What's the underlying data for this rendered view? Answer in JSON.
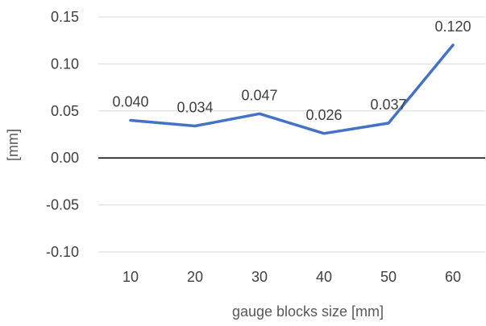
{
  "chart_data": {
    "type": "line",
    "title": "",
    "xlabel": "gauge blocks size  [mm]",
    "ylabel": "[mm]",
    "categories": [
      "10",
      "20",
      "30",
      "40",
      "50",
      "60"
    ],
    "series": [
      {
        "values": [
          0.04,
          0.034,
          0.047,
          0.026,
          0.037,
          0.12
        ],
        "data_labels": [
          "0.040",
          "0.034",
          "0.047",
          "0.026",
          "0.037",
          "0.120"
        ],
        "color": "#4472C4"
      }
    ],
    "ylim": [
      -0.1,
      0.15
    ],
    "yticks": [
      0.15,
      0.1,
      0.05,
      0.0,
      -0.05,
      -0.1
    ],
    "ytick_labels": [
      "0.15",
      "0.10",
      "0.05",
      "0.00",
      "-0.05",
      "-0.10"
    ],
    "grid": true,
    "zero_line": true,
    "legend": "none",
    "colors": {
      "grid": "#d9d9d9",
      "zero_line": "#000000",
      "text": "#404040"
    }
  }
}
